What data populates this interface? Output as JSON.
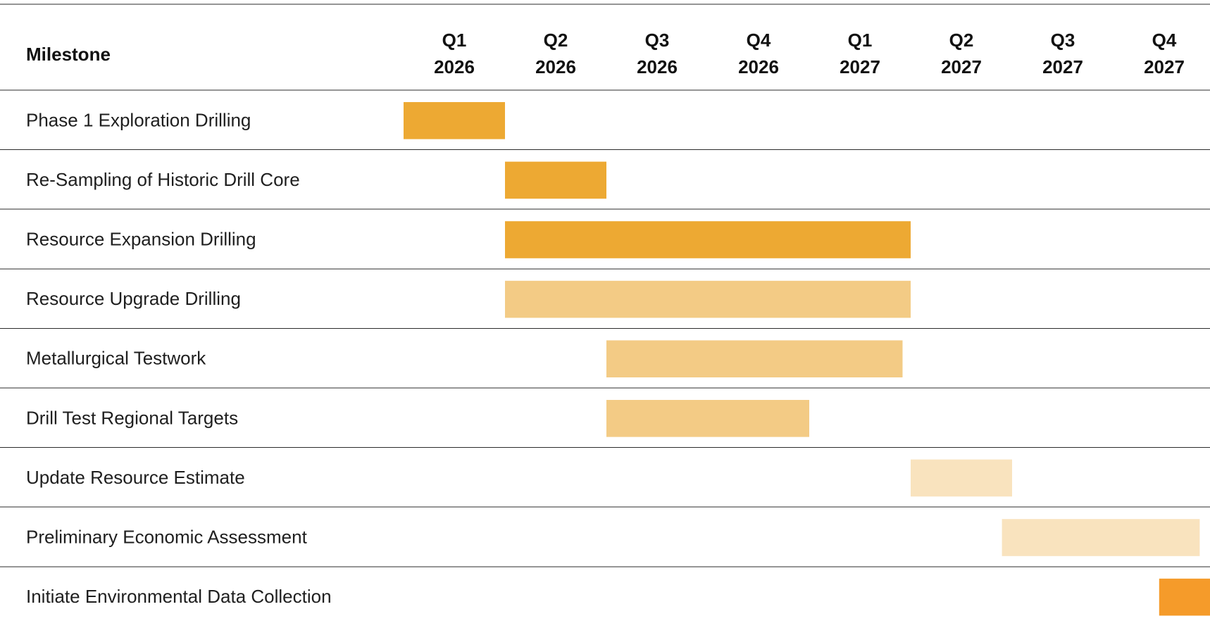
{
  "chart_data": {
    "type": "gantt",
    "header": {
      "milestone_label": "Milestone",
      "periods": [
        {
          "quarter": "Q1",
          "year": "2026"
        },
        {
          "quarter": "Q2",
          "year": "2026"
        },
        {
          "quarter": "Q3",
          "year": "2026"
        },
        {
          "quarter": "Q4",
          "year": "2026"
        },
        {
          "quarter": "Q1",
          "year": "2027"
        },
        {
          "quarter": "Q2",
          "year": "2027"
        },
        {
          "quarter": "Q3",
          "year": "2027"
        },
        {
          "quarter": "Q4",
          "year": "2027"
        }
      ]
    },
    "tasks": [
      {
        "label": "Phase 1 Exploration Drilling",
        "start_quarter": 0,
        "end_quarter": 1,
        "color": "#EDA933"
      },
      {
        "label": "Re-Sampling of Historic Drill Core",
        "start_quarter": 1,
        "end_quarter": 2,
        "color": "#EDA933"
      },
      {
        "label": "Resource Expansion Drilling",
        "start_quarter": 1,
        "end_quarter": 5,
        "color": "#EDA933"
      },
      {
        "label": "Resource Upgrade Drilling",
        "start_quarter": 1,
        "end_quarter": 5,
        "color": "#F3CB85"
      },
      {
        "label": "Metallurgical Testwork",
        "start_quarter": 2,
        "end_quarter": 4.92,
        "color": "#F3CB85"
      },
      {
        "label": "Drill Test Regional Targets",
        "start_quarter": 2,
        "end_quarter": 4,
        "color": "#F3CB85"
      },
      {
        "label": "Update Resource Estimate",
        "start_quarter": 5,
        "end_quarter": 6,
        "color": "#F9E3BE"
      },
      {
        "label": "Preliminary Economic Assessment",
        "start_quarter": 5.9,
        "end_quarter": 7.85,
        "color": "#F9E3BE"
      },
      {
        "label": "Initiate Environmental Data Collection",
        "start_quarter": 7.45,
        "end_quarter": 8,
        "color": "#F59B2A"
      }
    ],
    "grid": true
  }
}
